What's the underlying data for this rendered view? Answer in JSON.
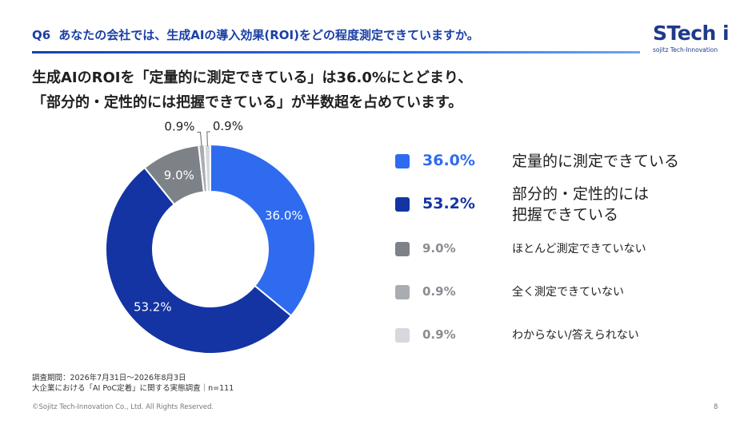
{
  "question": {
    "number": "Q6",
    "text": "あなたの会社では、生成AIの導入効果(ROI)をどの程度測定できていますか。"
  },
  "logo": {
    "name": "STech i",
    "tagline": "sojitz Tech-Innovation"
  },
  "headline": {
    "line1": "生成AIのROIを「定量的に測定できている」は36.0%にとどまり、",
    "line2": "「部分的・定性的には把握できている」が半数超を占めています。"
  },
  "chart_data": {
    "type": "pie",
    "variant": "donut",
    "start": "12 o'clock",
    "direction": "clockwise",
    "slices": [
      {
        "label": "定量的に測定できている",
        "value": 36.0,
        "display": "36.0%",
        "color": "#2f6bef",
        "label_style": "inside",
        "text_color": "#ffffff"
      },
      {
        "label": "部分的・定性的には把握できている",
        "value": 53.2,
        "display": "53.2%",
        "color": "#1434a4",
        "label_style": "inside",
        "text_color": "#ffffff"
      },
      {
        "label": "ほとんど測定できていない",
        "value": 9.0,
        "display": "9.0%",
        "color": "#7d8188",
        "label_style": "inside",
        "text_color": "#ffffff"
      },
      {
        "label": "全く測定できていない",
        "value": 0.9,
        "display": "0.9%",
        "color": "#a9acb1",
        "label_style": "outside-left",
        "text_color": "#222222"
      },
      {
        "label": "わからない/答えられない",
        "value": 0.9,
        "display": "0.9%",
        "color": "#d5d8dc",
        "label_style": "outside-right",
        "text_color": "#222222"
      }
    ]
  },
  "legend": [
    {
      "value": "36.0%",
      "lines": [
        "定量的に測定できている"
      ],
      "color": "#2f6bef",
      "emphasis": true
    },
    {
      "value": "53.2%",
      "lines": [
        "部分的・定性的には",
        "把握できている"
      ],
      "color": "#1434a4",
      "emphasis": true
    },
    {
      "value": "9.0%",
      "lines": [
        "ほとんど測定できていない"
      ],
      "color": "#7d8188",
      "emphasis": false
    },
    {
      "value": "0.9%",
      "lines": [
        "全く測定できていない"
      ],
      "color": "#a9acb1",
      "emphasis": false
    },
    {
      "value": "0.9%",
      "lines": [
        "わからない/答えられない"
      ],
      "color": "#d5d8dc",
      "emphasis": false
    }
  ],
  "survey": {
    "period": "調査期間：2026年7月31日～2026年8月3日",
    "name": "大企業における「AI PoC定着」に関する実態調査｜n=111"
  },
  "footer": {
    "copyright": "©Sojitz Tech-Innovation Co., Ltd. All Rights Reserved.",
    "page": "8"
  }
}
